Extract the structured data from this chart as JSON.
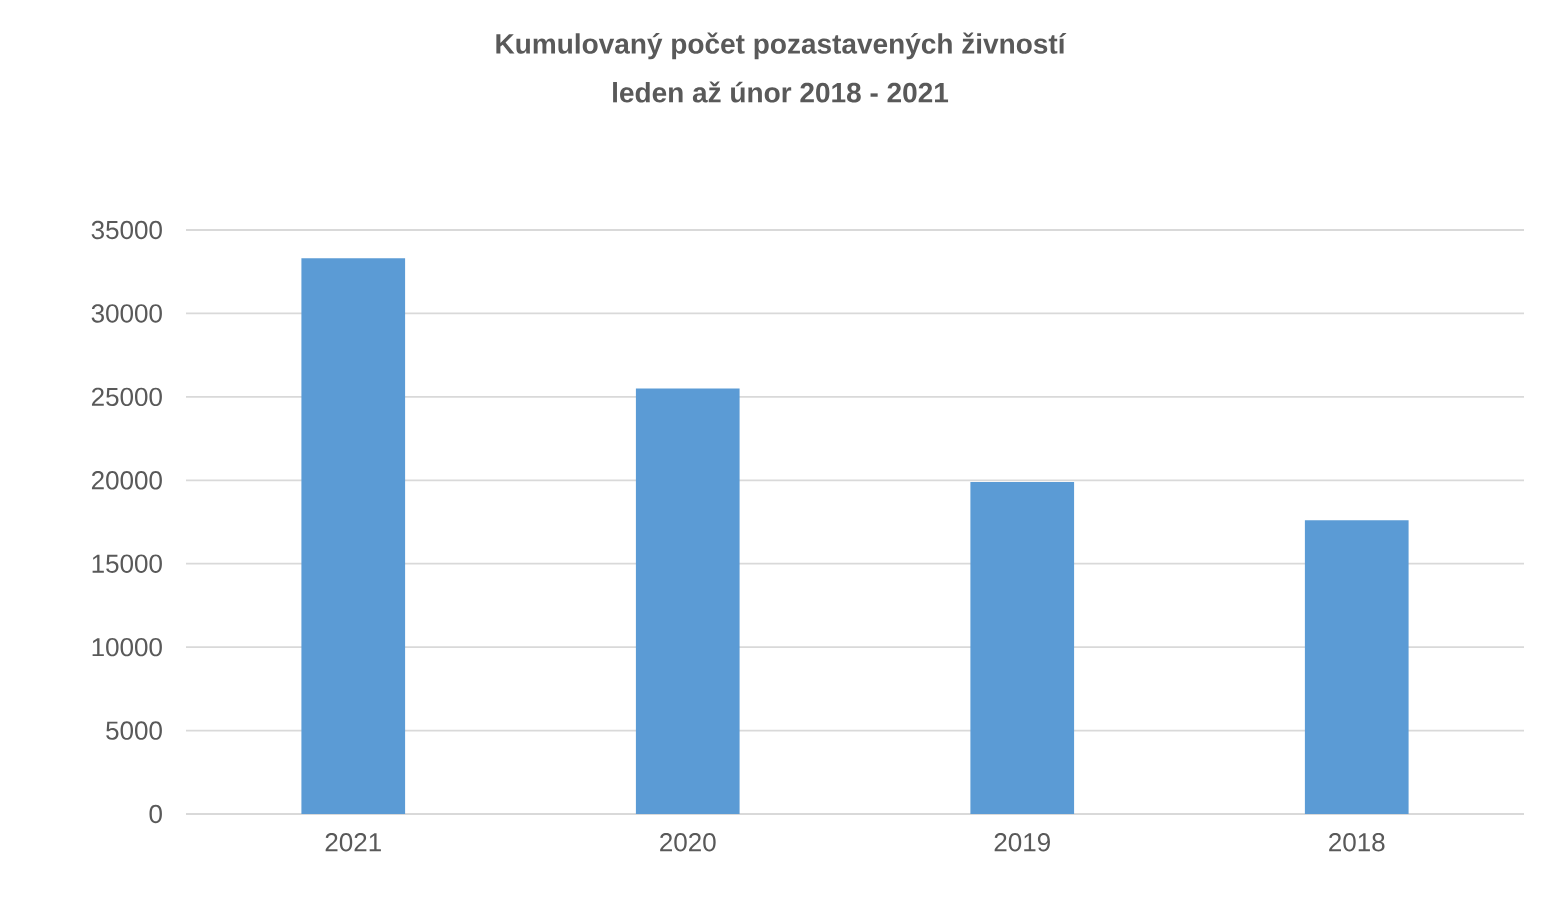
{
  "chart_data": {
    "type": "bar",
    "title": "Kumulovaný počet pozastavených živností",
    "subtitle": "leden až únor 2018 - 2021",
    "categories": [
      "2021",
      "2020",
      "2019",
      "2018"
    ],
    "values": [
      33300,
      25500,
      19900,
      17600
    ],
    "color": "#5b9bd5",
    "ylim": [
      0,
      35000
    ],
    "yticks": [
      0,
      5000,
      10000,
      15000,
      20000,
      25000,
      30000,
      35000
    ],
    "grid": "y"
  }
}
